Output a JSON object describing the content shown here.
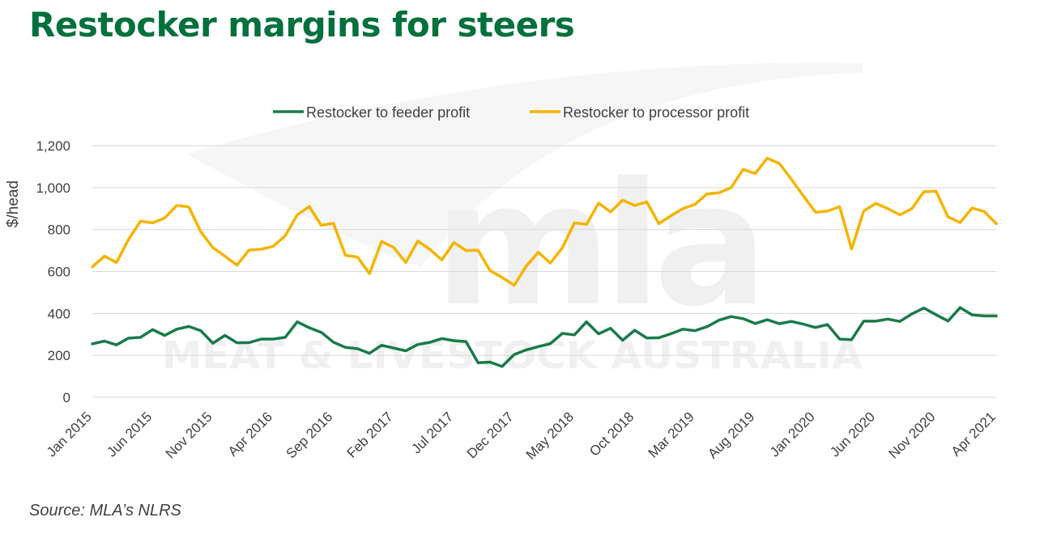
{
  "title": "Restocker margins for steers",
  "source": "Source: MLA’s NLRS",
  "watermark": {
    "logo": "mla",
    "text": "MEAT & LIVESTOCK AUSTRALIA"
  },
  "colors": {
    "title": "#00703c",
    "feeder": "#1a7a4a",
    "processor": "#f5b400",
    "grid": "#d9d9d9",
    "text": "#404040"
  },
  "chart_data": {
    "type": "line",
    "title": "",
    "xlabel": "",
    "ylabel": "$/head",
    "ylim": [
      0,
      1200
    ],
    "yticks": [
      0,
      200,
      400,
      600,
      800,
      1000,
      1200
    ],
    "ytick_labels": [
      "0",
      "200",
      "400",
      "600",
      "800",
      "1,000",
      "1,200"
    ],
    "grid": true,
    "legend_position": "top-center",
    "x_start": "Jan 2015",
    "x_tick_labels": [
      "Jan 2015",
      "Jun 2015",
      "Nov 2015",
      "Apr 2016",
      "Sep 2016",
      "Feb 2017",
      "Jul 2017",
      "Dec 2017",
      "May 2018",
      "Oct 2018",
      "Mar 2019",
      "Aug 2019",
      "Jan 2020",
      "Jun 2020",
      "Nov 2020",
      "Apr 2021"
    ],
    "x": [
      "Jan 2015",
      "Feb 2015",
      "Mar 2015",
      "Apr 2015",
      "May 2015",
      "Jun 2015",
      "Jul 2015",
      "Aug 2015",
      "Sep 2015",
      "Oct 2015",
      "Nov 2015",
      "Dec 2015",
      "Jan 2016",
      "Feb 2016",
      "Mar 2016",
      "Apr 2016",
      "May 2016",
      "Jun 2016",
      "Jul 2016",
      "Aug 2016",
      "Sep 2016",
      "Oct 2016",
      "Nov 2016",
      "Dec 2016",
      "Jan 2017",
      "Feb 2017",
      "Mar 2017",
      "Apr 2017",
      "May 2017",
      "Jun 2017",
      "Jul 2017",
      "Aug 2017",
      "Sep 2017",
      "Oct 2017",
      "Nov 2017",
      "Dec 2017",
      "Jan 2018",
      "Feb 2018",
      "Mar 2018",
      "Apr 2018",
      "May 2018",
      "Jun 2018",
      "Jul 2018",
      "Aug 2018",
      "Sep 2018",
      "Oct 2018",
      "Nov 2018",
      "Dec 2018",
      "Jan 2019",
      "Feb 2019",
      "Mar 2019",
      "Apr 2019",
      "May 2019",
      "Jun 2019",
      "Jul 2019",
      "Aug 2019",
      "Sep 2019",
      "Oct 2019",
      "Nov 2019",
      "Dec 2019",
      "Jan 2020",
      "Feb 2020",
      "Mar 2020",
      "Apr 2020",
      "May 2020",
      "Jun 2020",
      "Jul 2020",
      "Aug 2020",
      "Sep 2020",
      "Oct 2020",
      "Nov 2020",
      "Dec 2020",
      "Jan 2021",
      "Feb 2021",
      "Mar 2021",
      "Apr 2021"
    ],
    "series": [
      {
        "name": "Restocker to feeder profit",
        "color": "#1a7a4a",
        "values": [
          255,
          268,
          250,
          282,
          286,
          323,
          295,
          325,
          338,
          318,
          258,
          295,
          260,
          261,
          278,
          278,
          286,
          360,
          332,
          310,
          263,
          238,
          232,
          210,
          248,
          235,
          222,
          252,
          262,
          280,
          270,
          266,
          165,
          168,
          147,
          204,
          226,
          242,
          256,
          305,
          298,
          360,
          303,
          329,
          272,
          320,
          283,
          284,
          303,
          325,
          318,
          337,
          368,
          385,
          375,
          352,
          370,
          351,
          362,
          349,
          333,
          347,
          278,
          275,
          363,
          363,
          373,
          362,
          398,
          426,
          394,
          364,
          428,
          393,
          388,
          388
        ]
      },
      {
        "name": "Restocker to processor profit",
        "color": "#f5b400",
        "values": [
          622,
          673,
          643,
          752,
          840,
          832,
          855,
          915,
          908,
          790,
          714,
          673,
          630,
          702,
          706,
          720,
          770,
          870,
          910,
          820,
          830,
          677,
          669,
          590,
          743,
          715,
          643,
          745,
          706,
          655,
          738,
          700,
          702,
          605,
          572,
          534,
          626,
          692,
          640,
          713,
          832,
          825,
          926,
          884,
          940,
          915,
          932,
          828,
          865,
          900,
          920,
          970,
          975,
          1000,
          1087,
          1067,
          1140,
          1115,
          1040,
          960,
          883,
          888,
          909,
          707,
          888,
          925,
          900,
          870,
          900,
          980,
          983,
          860,
          833,
          903,
          886,
          828
        ]
      }
    ]
  }
}
